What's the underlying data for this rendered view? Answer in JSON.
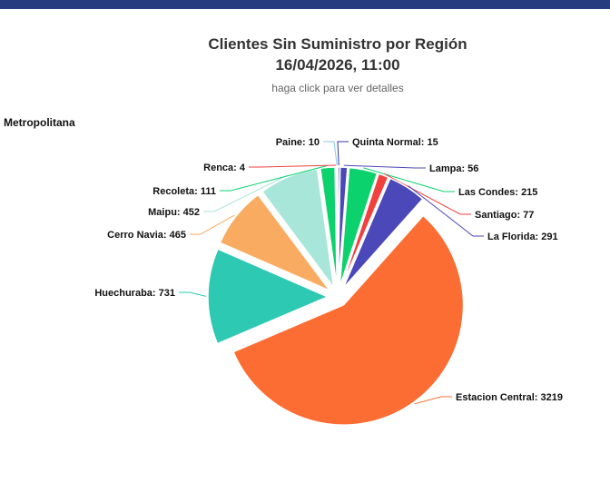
{
  "accent": {
    "top_bar_color": "#253c7e"
  },
  "header": {
    "title": "Clientes Sin Suministro por Región",
    "date_line": "16/04/2026, 11:00",
    "subtitle": "haga click para ver detalles"
  },
  "region_label": "Metropolitana",
  "chart_data": {
    "type": "pie",
    "title": "Clientes Sin Suministro por Región",
    "subtitle_date": "16/04/2026, 11:00",
    "subtitle": "haga click para ver detalles",
    "region": "Metropolitana",
    "label_format": "Name: value",
    "layout_hints": {
      "start_angle_deg": 0,
      "direction": "clockwise",
      "exploded": true,
      "legend": "none",
      "data_labels": "outside-with-connectors"
    },
    "slices": [
      {
        "label": "Quinta Normal",
        "value": 15,
        "color": "#3434a4"
      },
      {
        "label": "Lampa",
        "value": 56,
        "color": "#4b48ba"
      },
      {
        "label": "Las Condes",
        "value": 215,
        "color": "#0bd26c"
      },
      {
        "label": "Santiago",
        "value": 77,
        "color": "#f0413e"
      },
      {
        "label": "La Florida",
        "value": 291,
        "color": "#4b48ba"
      },
      {
        "label": "Estacion Central",
        "value": 3219,
        "color": "#fb6d33"
      },
      {
        "label": "Huechuraba",
        "value": 731,
        "color": "#2dc9b2"
      },
      {
        "label": "Cerro Navia",
        "value": 465,
        "color": "#f9ab61"
      },
      {
        "label": "Maipu",
        "value": 452,
        "color": "#a8e6da"
      },
      {
        "label": "Recoleta",
        "value": 111,
        "color": "#0bd26c"
      },
      {
        "label": "Renca",
        "value": 4,
        "color": "#f0413e"
      },
      {
        "label": "Paine",
        "value": 10,
        "color": "#8cc7ea"
      }
    ]
  }
}
